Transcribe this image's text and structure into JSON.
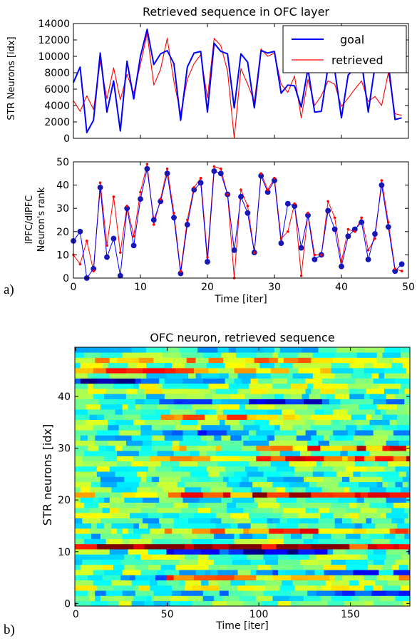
{
  "panel_labels": [
    "a)",
    "b)"
  ],
  "chart_data": [
    {
      "type": "line",
      "title": "Retrieved sequence in OFC layer",
      "xlabel": "",
      "ylabel": "STR Neurons [idx]",
      "xlim": [
        0,
        50
      ],
      "ylim": [
        0,
        14000
      ],
      "yticks": [
        "0",
        "2000",
        "4000",
        "6000",
        "8000",
        "10000",
        "12000",
        "14000"
      ],
      "grid": false,
      "legend": "top-right",
      "x": [
        0,
        1,
        2,
        3,
        4,
        5,
        6,
        7,
        8,
        9,
        10,
        11,
        12,
        13,
        14,
        15,
        16,
        17,
        18,
        19,
        20,
        21,
        22,
        23,
        24,
        25,
        26,
        27,
        28,
        29,
        30,
        31,
        32,
        33,
        34,
        35,
        36,
        37,
        38,
        39,
        40,
        41,
        42,
        43,
        44,
        45,
        46,
        47,
        48,
        49
      ],
      "series": [
        {
          "name": "goal",
          "color": "#0000ff",
          "values": [
            6800,
            8700,
            700,
            2200,
            10400,
            3200,
            7000,
            900,
            9400,
            4800,
            10000,
            13300,
            9000,
            10300,
            10700,
            9100,
            2200,
            8700,
            10400,
            10600,
            3200,
            11600,
            10600,
            10300,
            3700,
            10300,
            9300,
            3700,
            10700,
            10400,
            10600,
            5500,
            6500,
            6400,
            3800,
            8500,
            3200,
            3300,
            8700,
            8300,
            2500,
            7700,
            8600,
            9400,
            3200,
            8800,
            10600,
            9100,
            2300,
            2500
          ]
        },
        {
          "name": "retrieved",
          "color": "#ff0000",
          "values": [
            4600,
            3300,
            5200,
            3500,
            9400,
            4800,
            8600,
            4700,
            7800,
            5500,
            9000,
            12800,
            6500,
            8400,
            12200,
            6900,
            3000,
            7200,
            9100,
            10200,
            4900,
            12200,
            11300,
            8200,
            0,
            8500,
            6600,
            4500,
            10900,
            10000,
            10400,
            6600,
            5600,
            7600,
            2500,
            7200,
            4000,
            5200,
            7000,
            6600,
            3900,
            4900,
            6000,
            7000,
            4500,
            5100,
            4000,
            8000,
            3000,
            2800
          ]
        }
      ]
    },
    {
      "type": "line",
      "title": "",
      "xlabel": "Time [iter]",
      "ylabel_lines": [
        "lPFC/dlPFC",
        "Neuron's rank"
      ],
      "xlim": [
        0,
        50
      ],
      "ylim": [
        0,
        50
      ],
      "xticks": [
        "0",
        "10",
        "20",
        "30",
        "40",
        "50"
      ],
      "yticks": [
        "0",
        "10",
        "20",
        "30",
        "40",
        "50"
      ],
      "grid": false,
      "x": [
        0,
        1,
        2,
        3,
        4,
        5,
        6,
        7,
        8,
        9,
        10,
        11,
        12,
        13,
        14,
        15,
        16,
        17,
        18,
        19,
        20,
        21,
        22,
        23,
        24,
        25,
        26,
        27,
        28,
        29,
        30,
        31,
        32,
        33,
        34,
        35,
        36,
        37,
        38,
        39,
        40,
        41,
        42,
        43,
        44,
        45,
        46,
        47,
        48,
        49
      ],
      "series": [
        {
          "color": "#0000ff",
          "marker": "circle",
          "values": [
            16,
            20,
            0,
            4,
            39,
            9,
            17,
            1,
            30,
            14,
            34,
            47,
            25,
            33,
            45,
            26,
            2,
            23,
            38,
            41,
            7,
            46,
            45,
            36,
            12,
            35,
            28,
            11,
            44,
            37,
            42,
            15,
            32,
            31,
            13,
            27,
            8,
            10,
            29,
            21,
            5,
            18,
            21,
            24,
            8,
            19,
            40,
            22,
            3,
            6
          ]
        },
        {
          "color": "#ff0000",
          "marker": "small-dot",
          "values": [
            10,
            6,
            16,
            3,
            41,
            14,
            35,
            11,
            31,
            18,
            37,
            49,
            23,
            34,
            47,
            28,
            3,
            25,
            39,
            43,
            9,
            48,
            47,
            36,
            0,
            38,
            31,
            11,
            45,
            38,
            43,
            17,
            20,
            32,
            1,
            28,
            10,
            10,
            33,
            26,
            7,
            21,
            20,
            26,
            12,
            17,
            42,
            24,
            4,
            3
          ]
        }
      ]
    },
    {
      "type": "heatmap",
      "title": "OFC neuron, retrieved sequence",
      "xlabel": "Time [iter]",
      "ylabel": "STR neurons [idx]",
      "xlim": [
        0,
        183
      ],
      "ylim": [
        0,
        50
      ],
      "xticks": [
        "0",
        "50",
        "100",
        "150"
      ],
      "yticks": [
        "0",
        "10",
        "20",
        "30",
        "40"
      ],
      "colormap": "jet",
      "rows": 50,
      "cols": 183
    }
  ]
}
